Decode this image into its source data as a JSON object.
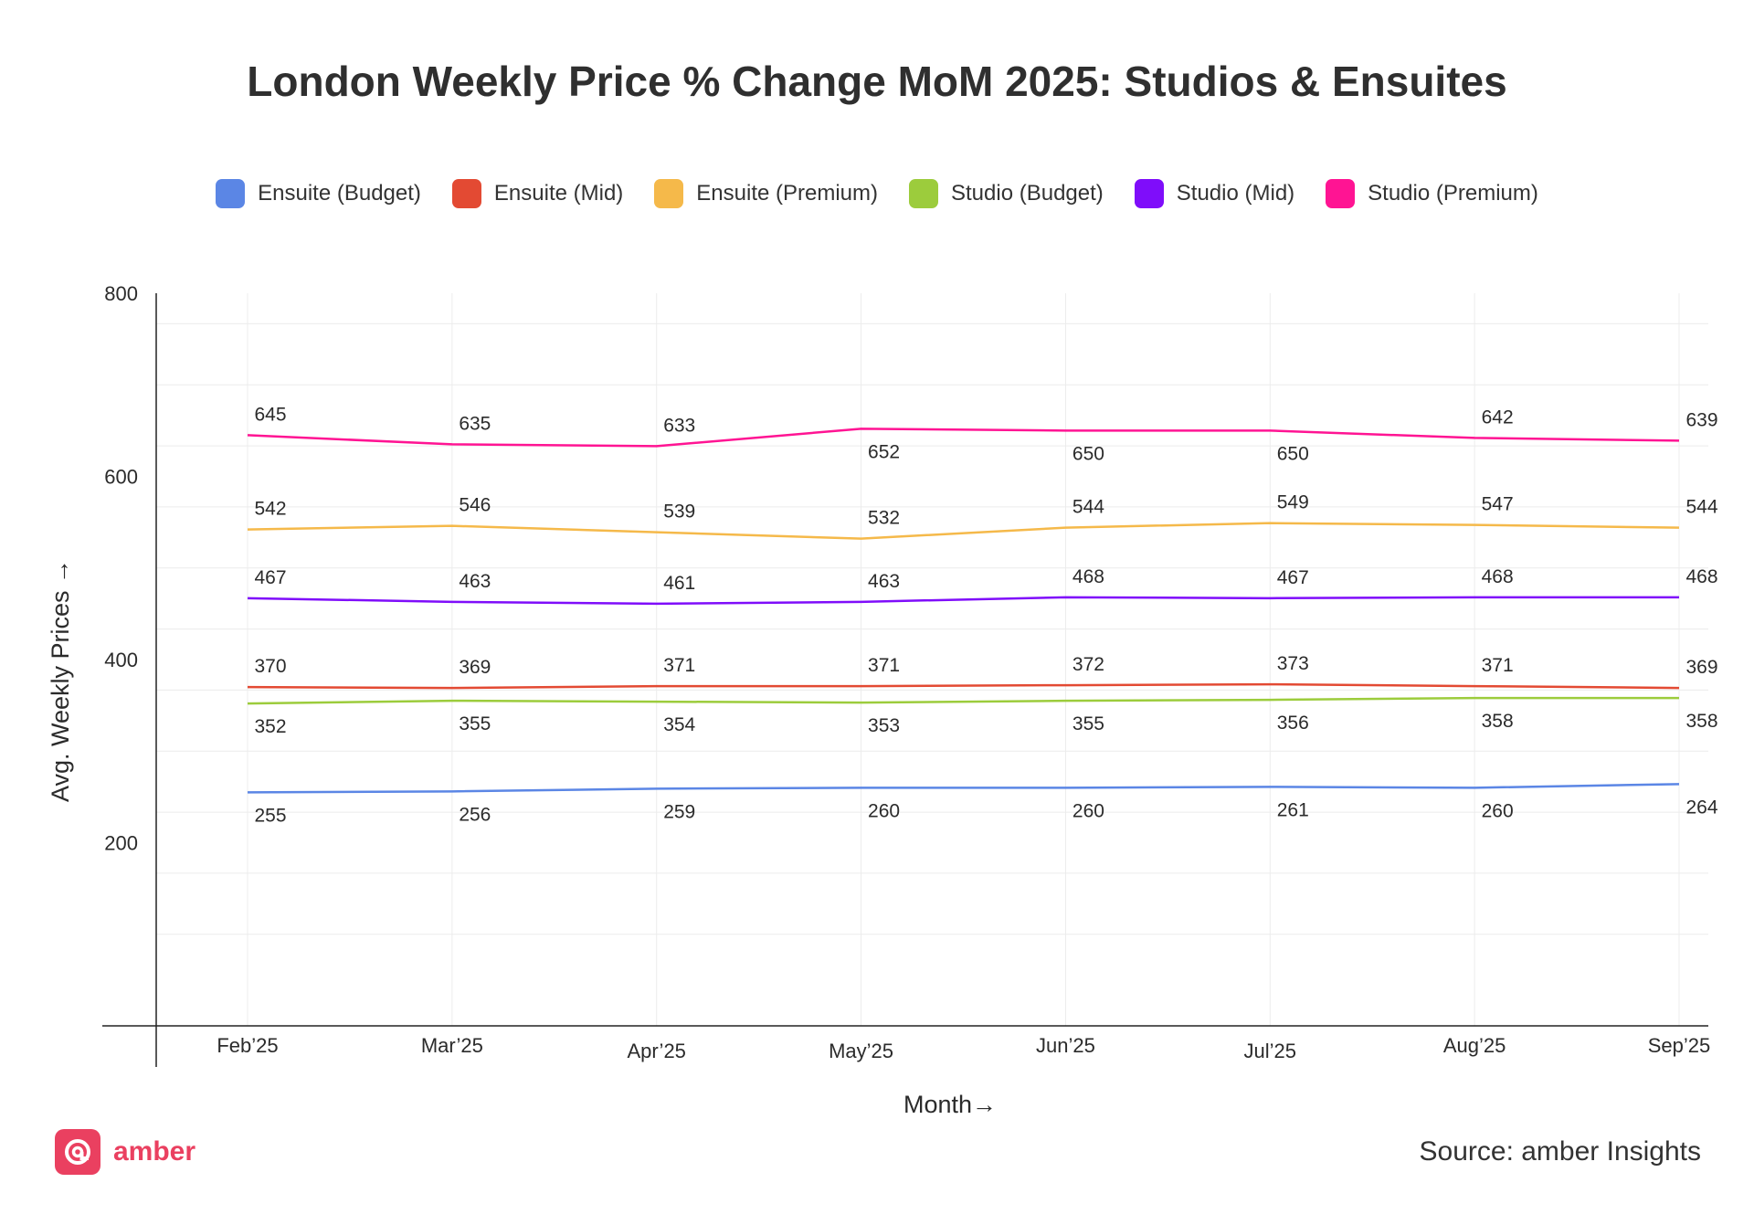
{
  "chart_data": {
    "type": "line",
    "title": "London Weekly Price % Change MoM 2025: Studios & Ensuites",
    "xlabel": "Month",
    "ylabel": "Avg. Weekly Prices",
    "categories": [
      "Feb’25",
      "Mar’25",
      "Apr’25",
      "May’25",
      "Jun’25",
      "Jul’25",
      "Aug’25",
      "Sep’25"
    ],
    "ylim": [
      0,
      800
    ],
    "yticks": [
      200,
      400,
      600,
      800
    ],
    "grid": true,
    "legend_position": "top-center",
    "series": [
      {
        "name": "Ensuite (Budget)",
        "color": "#5b86e5",
        "values": [
          255,
          256,
          259,
          260,
          260,
          261,
          260,
          264
        ]
      },
      {
        "name": "Ensuite (Mid)",
        "color": "#e34a33",
        "values": [
          370,
          369,
          371,
          371,
          372,
          373,
          371,
          369
        ]
      },
      {
        "name": "Ensuite (Premium)",
        "color": "#f5b94a",
        "values": [
          542,
          546,
          539,
          532,
          544,
          549,
          547,
          544
        ]
      },
      {
        "name": "Studio (Budget)",
        "color": "#9ccc3c",
        "values": [
          352,
          355,
          354,
          353,
          355,
          356,
          358,
          358
        ]
      },
      {
        "name": "Studio (Mid)",
        "color": "#7f0dfa",
        "values": [
          467,
          463,
          461,
          463,
          468,
          467,
          468,
          468
        ]
      },
      {
        "name": "Studio (Premium)",
        "color": "#ff1493",
        "values": [
          645,
          635,
          633,
          652,
          650,
          650,
          642,
          639
        ]
      }
    ]
  },
  "brand": {
    "name": "amber",
    "color": "#ea4060"
  },
  "source": "Source: amber Insights",
  "icons": {
    "logo": "amber-logo-icon"
  }
}
